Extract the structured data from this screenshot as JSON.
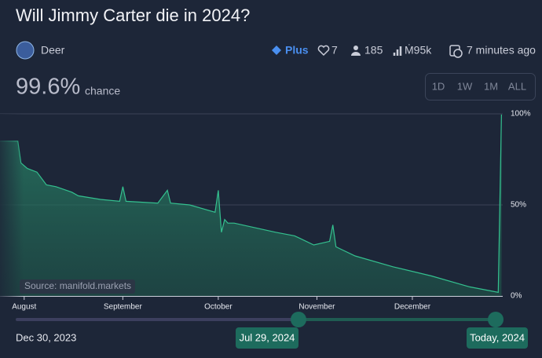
{
  "title": "Will Jimmy Carter die in 2024?",
  "creator": "Deer",
  "tier": "Plus",
  "likes": 7,
  "traders": 185,
  "volume": "Ṁ95k",
  "updated": "7 minutes ago",
  "probability": "99.6%",
  "probability_label": "chance",
  "time_ranges": [
    "1D",
    "1W",
    "1M",
    "ALL"
  ],
  "source": "Source: manifold.markets",
  "slider": {
    "start": "Dec 30, 2023",
    "from": "Jul 29, 2024",
    "to": "Today, 2024"
  },
  "chart_data": {
    "type": "line",
    "color": "#34c08f",
    "grid": true,
    "x": [
      -7.6,
      -2,
      -1,
      1,
      4,
      7,
      10,
      15,
      17,
      24,
      30,
      31,
      32,
      42,
      45,
      46,
      52,
      60,
      61,
      62,
      63,
      64,
      66,
      79,
      85,
      91,
      96,
      97,
      98,
      104,
      116,
      128,
      140,
      149,
      150
    ],
    "values": [
      85,
      85,
      73,
      70,
      68,
      61,
      60,
      57,
      55,
      53,
      52,
      60,
      52,
      51,
      58,
      51,
      50,
      46,
      58,
      35,
      42,
      40,
      40,
      35,
      33,
      28,
      30,
      39,
      27,
      22,
      16,
      11,
      5,
      2,
      99.6
    ],
    "xlim": [
      -7.6,
      150.4
    ],
    "ylim": [
      0,
      100
    ],
    "xticks": [
      {
        "value": 0,
        "label": "August"
      },
      {
        "value": 31,
        "label": "September"
      },
      {
        "value": 61,
        "label": "October"
      },
      {
        "value": 92,
        "label": "November"
      },
      {
        "value": 122,
        "label": "December"
      }
    ],
    "yticks": [
      {
        "value": 0,
        "label": "0%"
      },
      {
        "value": 50,
        "label": "50%"
      },
      {
        "value": 100,
        "label": "100%"
      }
    ]
  }
}
